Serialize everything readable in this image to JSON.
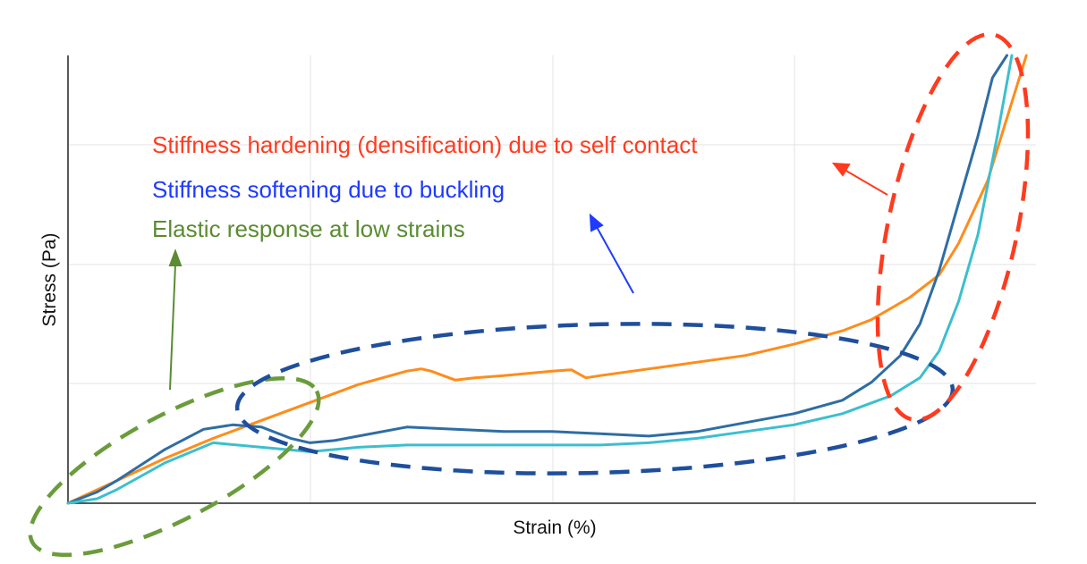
{
  "chart_data": {
    "type": "line",
    "title": "",
    "xlabel": "Strain (%)",
    "ylabel": "Stress (Pa)",
    "xlim": [
      0,
      100
    ],
    "ylim": [
      0,
      100
    ],
    "x_tick_labels": [],
    "y_tick_labels": [],
    "grid": true,
    "legend": "none",
    "series": [
      {
        "color": "#ff8c1a",
        "x": [
          0,
          2,
          5,
          10,
          15,
          20,
          25,
          30,
          35,
          36.5,
          37.5,
          40,
          42,
          45,
          50,
          52,
          53.5,
          55,
          60,
          65,
          70,
          75,
          80,
          83,
          87,
          90,
          92,
          95,
          97,
          99
        ],
        "y": [
          0,
          2,
          5,
          10,
          14.5,
          18.5,
          22.5,
          26.5,
          29.5,
          30,
          29.5,
          27.5,
          28,
          28.5,
          29.5,
          29.8,
          28,
          28.5,
          30,
          31.5,
          33,
          35.5,
          38.5,
          41,
          46,
          51,
          58,
          72,
          86,
          100
        ]
      },
      {
        "color": "#2e6da4",
        "x": [
          0,
          3,
          5,
          10,
          14,
          17,
          20,
          23,
          25,
          27.5,
          30,
          35,
          40,
          45,
          50,
          55,
          60,
          65,
          70,
          75,
          80,
          83,
          86,
          88,
          90,
          92,
          94,
          95.5,
          97
        ],
        "y": [
          0,
          2.5,
          5,
          12,
          16.5,
          17.5,
          17,
          14.5,
          13.5,
          14,
          15,
          17,
          16.5,
          16,
          16,
          15.5,
          15,
          16,
          18,
          20,
          23,
          27,
          33,
          40,
          52,
          67,
          82,
          95,
          100
        ]
      },
      {
        "color": "#3bbfcf",
        "x": [
          0,
          3,
          5,
          10,
          15,
          20,
          25,
          30,
          35,
          40,
          45,
          50,
          55,
          60,
          65,
          70,
          75,
          80,
          85,
          88,
          90,
          92,
          94,
          96,
          97.5
        ],
        "y": [
          0,
          1,
          3,
          9,
          13.5,
          12.5,
          11.5,
          12.5,
          13,
          13,
          13,
          13,
          13,
          13.5,
          14.5,
          16,
          17.5,
          20,
          24,
          28,
          34,
          45,
          60,
          82,
          100
        ]
      }
    ]
  },
  "annotations": [
    {
      "text": "Stiffness hardening (densification) due to self contact",
      "color": "#ff3b1f"
    },
    {
      "text": "Stiffness softening due to buckling",
      "color": "#1f3bff"
    },
    {
      "text": "Elastic response at low strains",
      "color": "#5a8c32"
    }
  ]
}
